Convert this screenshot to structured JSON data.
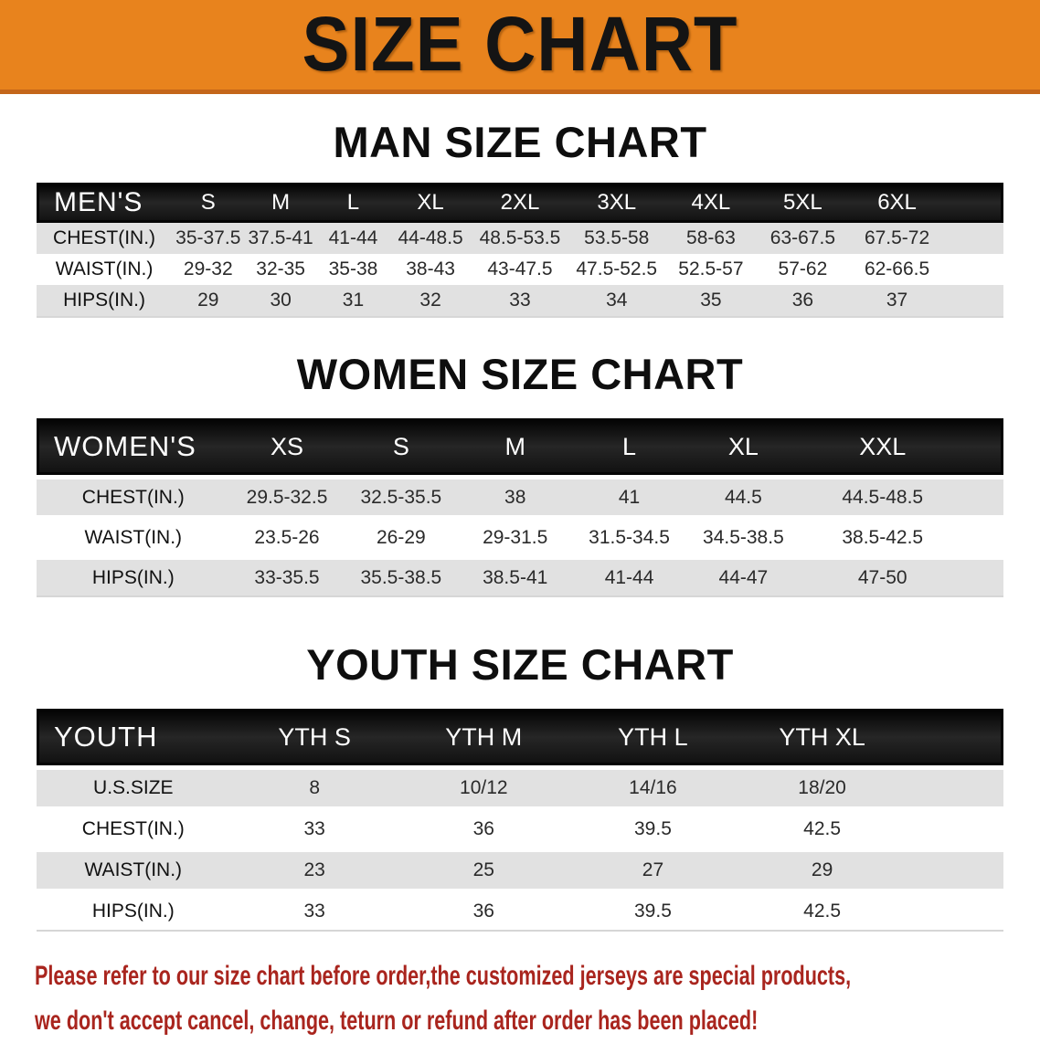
{
  "banner": {
    "title": "SIZE CHART",
    "bg_color": "#E8831D",
    "text_color": "#141414"
  },
  "sections": [
    {
      "heading": "MAN SIZE CHART",
      "label": "MEN'S",
      "columns": [
        "S",
        "M",
        "L",
        "XL",
        "2XL",
        "3XL",
        "4XL",
        "5XL",
        "6XL"
      ],
      "rows": [
        {
          "label": "CHEST(IN.)",
          "values": [
            "35-37.5",
            "37.5-41",
            "41-44",
            "44-48.5",
            "48.5-53.5",
            "53.5-58",
            "58-63",
            "63-67.5",
            "67.5-72"
          ]
        },
        {
          "label": "WAIST(IN.)",
          "values": [
            "29-32",
            "32-35",
            "35-38",
            "38-43",
            "43-47.5",
            "47.5-52.5",
            "52.5-57",
            "57-62",
            "62-66.5"
          ]
        },
        {
          "label": "HIPS(IN.)",
          "values": [
            "29",
            "30",
            "31",
            "32",
            "33",
            "34",
            "35",
            "36",
            "37"
          ]
        }
      ]
    },
    {
      "heading": "WOMEN SIZE CHART",
      "label": "WOMEN'S",
      "columns": [
        "XS",
        "S",
        "M",
        "L",
        "XL",
        "XXL"
      ],
      "rows": [
        {
          "label": "CHEST(IN.)",
          "values": [
            "29.5-32.5",
            "32.5-35.5",
            "38",
            "41",
            "44.5",
            "44.5-48.5"
          ]
        },
        {
          "label": "WAIST(IN.)",
          "values": [
            "23.5-26",
            "26-29",
            "29-31.5",
            "31.5-34.5",
            "34.5-38.5",
            "38.5-42.5"
          ]
        },
        {
          "label": "HIPS(IN.)",
          "values": [
            "33-35.5",
            "35.5-38.5",
            "38.5-41",
            "41-44",
            "44-47",
            "47-50"
          ]
        }
      ]
    },
    {
      "heading": "YOUTH SIZE CHART",
      "label": "YOUTH",
      "columns": [
        "YTH S",
        "YTH M",
        "YTH L",
        "YTH XL"
      ],
      "rows": [
        {
          "label": "U.S.SIZE",
          "values": [
            "8",
            "10/12",
            "14/16",
            "18/20"
          ]
        },
        {
          "label": "CHEST(IN.)",
          "values": [
            "33",
            "36",
            "39.5",
            "42.5"
          ]
        },
        {
          "label": "WAIST(IN.)",
          "values": [
            "23",
            "25",
            "27",
            "29"
          ]
        },
        {
          "label": "HIPS(IN.)",
          "values": [
            "33",
            "36",
            "39.5",
            "42.5"
          ]
        }
      ]
    }
  ],
  "disclaimer": {
    "line1": "Please refer to our size chart before order,the customized jerseys are special products,",
    "line2": "we don't accept cancel, change, teturn or refund after order has been placed!",
    "text_color": "#A9251E"
  },
  "colors": {
    "header_bar": "#161616",
    "row_stripe": "#E1E1E1",
    "banner_orange": "#E8831D",
    "disclaimer_red": "#A9251E"
  }
}
